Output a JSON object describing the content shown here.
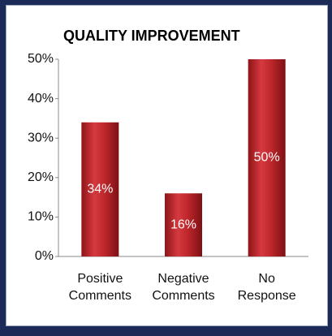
{
  "chart_data": {
    "type": "bar",
    "title": "QUALITY IMPROVEMENT",
    "categories": [
      "Positive Comments",
      "Negative Comments",
      "No Response"
    ],
    "values": [
      34,
      16,
      50
    ],
    "value_labels": [
      "34%",
      "16%",
      "50%"
    ],
    "color": "#c0282d",
    "ylim": [
      0,
      50
    ],
    "yticks": [
      {
        "value": 0,
        "label": "0%"
      },
      {
        "value": 10,
        "label": "10%"
      },
      {
        "value": 20,
        "label": "20%"
      },
      {
        "value": 30,
        "label": "30%"
      },
      {
        "value": 40,
        "label": "40%"
      },
      {
        "value": 50,
        "label": "50%"
      }
    ],
    "grid": false
  }
}
